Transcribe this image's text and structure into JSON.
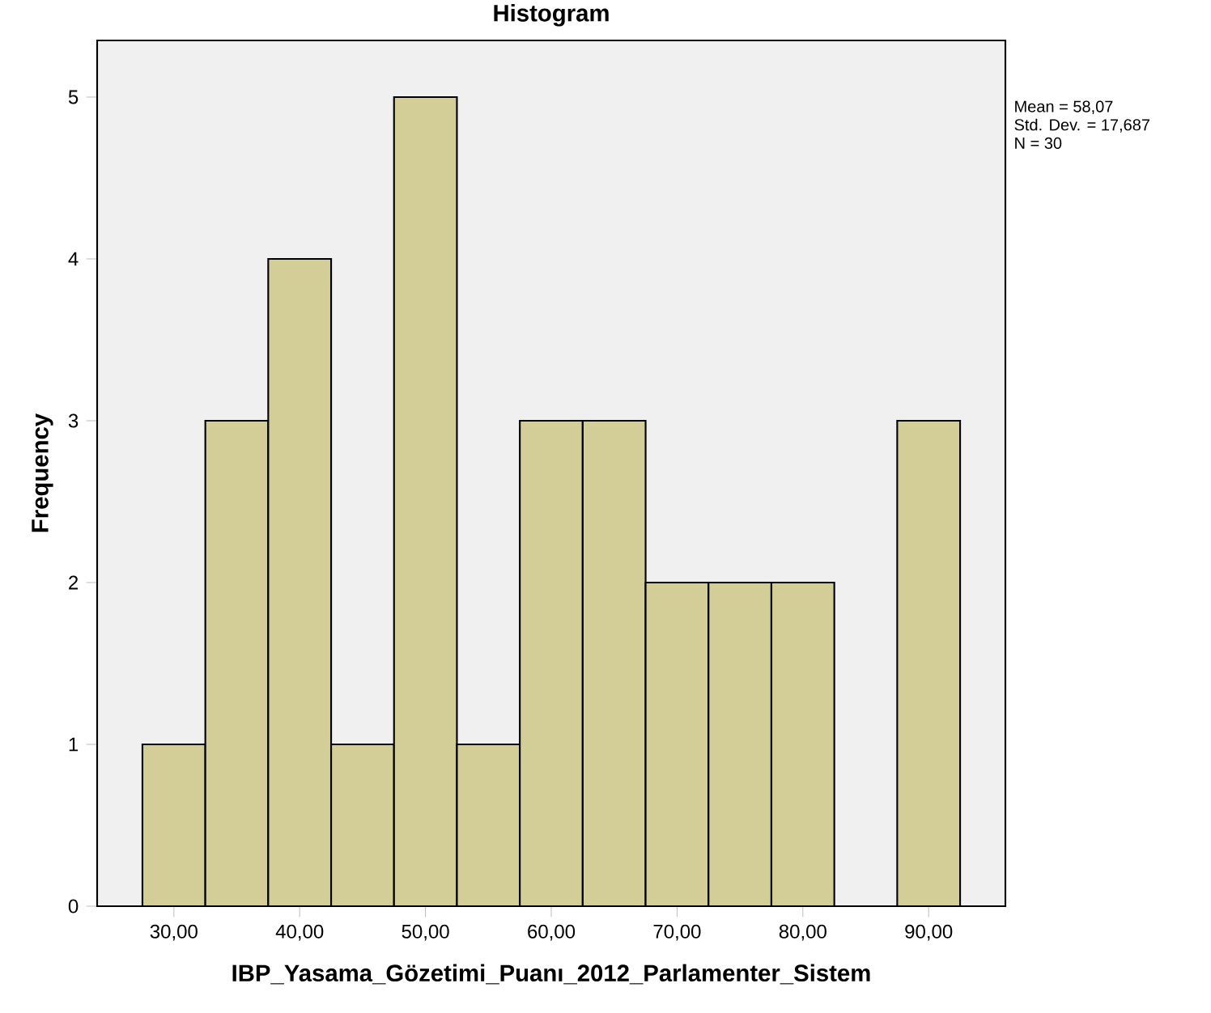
{
  "chart_data": {
    "type": "histogram",
    "title": "Histogram",
    "xlabel": "IBP_Yasama_Gözetimi_Puanı_2012_Parlamenter_Sistem",
    "ylabel": "Frequency",
    "bins": [
      27.5,
      32.5,
      37.5,
      42.5,
      47.5,
      52.5,
      57.5,
      62.5,
      67.5,
      72.5,
      77.5,
      82.5,
      87.5,
      92.5
    ],
    "values": [
      1,
      3,
      4,
      1,
      5,
      1,
      3,
      3,
      2,
      2,
      2,
      0,
      3
    ],
    "color": "#d3ce98",
    "xlim": [
      23.9,
      96.1
    ],
    "ylim": [
      0,
      5.35
    ],
    "xticks": [
      {
        "value": 30,
        "label": "30,00"
      },
      {
        "value": 40,
        "label": "40,00"
      },
      {
        "value": 50,
        "label": "50,00"
      },
      {
        "value": 60,
        "label": "60,00"
      },
      {
        "value": 70,
        "label": "70,00"
      },
      {
        "value": 80,
        "label": "80,00"
      },
      {
        "value": 90,
        "label": "90,00"
      }
    ],
    "yticks": [
      0,
      1,
      2,
      3,
      4,
      5
    ],
    "annotations": [
      "Mean = 58,07",
      "Std. Dev. = 17,687",
      "N = 30"
    ]
  }
}
